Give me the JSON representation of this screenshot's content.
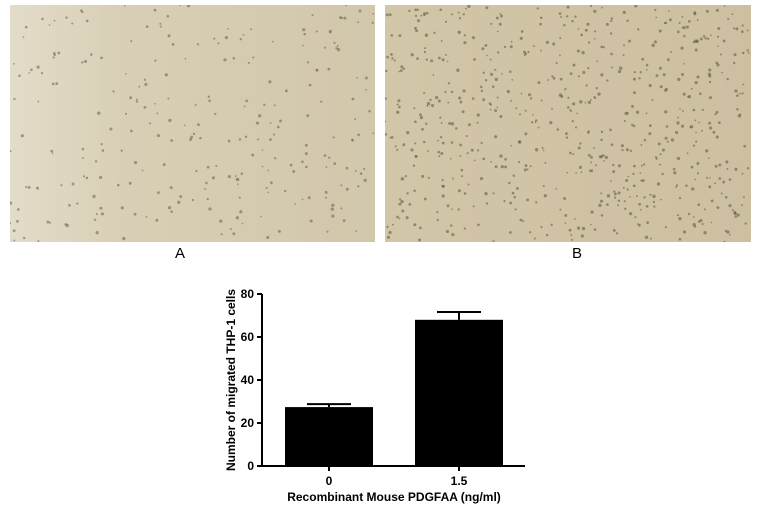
{
  "panels": [
    {
      "label": "A",
      "background": "#d8cfb6"
    },
    {
      "label": "B",
      "background": "#cfc3a5"
    }
  ],
  "chart_data": {
    "type": "bar",
    "categories": [
      "0",
      "1.5"
    ],
    "values": [
      27.4,
      68
    ],
    "error": [
      1.4,
      3.6
    ],
    "xlabel": "Recombinant Mouse PDGFAA (ng/ml)",
    "ylabel": "Number of migrated THP-1 cells",
    "ylim": [
      0,
      80
    ],
    "yticks": [
      0,
      20,
      40,
      60,
      80
    ],
    "bar_color": "#000000",
    "grid": false
  }
}
